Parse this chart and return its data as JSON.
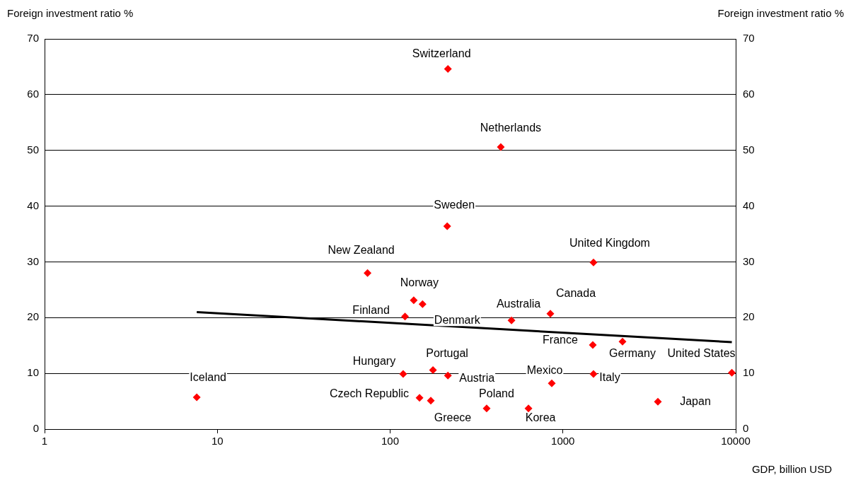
{
  "chart_data": {
    "type": "scatter",
    "ylabel": "Foreign investment ratio %",
    "y2label": "Foreign investment ratio %",
    "xlabel": "GDP, billion USD",
    "log": "x",
    "grid": "y",
    "marker": "diamond",
    "legend": false,
    "xlim": [
      1,
      10000
    ],
    "xticks": [
      1,
      10,
      100,
      1000,
      10000
    ],
    "ylim": [
      0,
      70
    ],
    "yticks": [
      0,
      10,
      20,
      30,
      40,
      50,
      60,
      70
    ],
    "y2lim": [
      0,
      70
    ],
    "y2ticks": [
      0,
      10,
      20,
      30,
      40,
      50,
      60,
      70
    ],
    "series": [
      {
        "color": "#ff0000",
        "x": [
          7.6,
          216,
          437,
          214,
          74,
          1503,
          137,
          154,
          122,
          504,
          846,
          1489,
          2213,
          9500,
          119,
          177,
          216,
          862,
          1503,
          148,
          172,
          362,
          632,
          3545
        ],
        "values": [
          5.7,
          64.6,
          50.6,
          36.4,
          28.0,
          29.9,
          23.1,
          22.4,
          20.2,
          19.5,
          20.7,
          15.1,
          15.7,
          10.1,
          9.9,
          10.6,
          9.6,
          8.2,
          9.9,
          5.6,
          5.1,
          3.7,
          3.7,
          4.9
        ]
      },
      {
        "type": "line",
        "color": "#000000",
        "marker": "none",
        "x": [
          7.6,
          9500
        ],
        "values": [
          21.0,
          15.6
        ]
      }
    ],
    "annotations": [
      {
        "text": "Iceland",
        "x": 7.6,
        "y": 5.7
      },
      {
        "text": "Switzerland",
        "x": 216,
        "y": 64.6
      },
      {
        "text": "Netherlands",
        "x": 437,
        "y": 50.6
      },
      {
        "text": "Sweden",
        "x": 214,
        "y": 36.4
      },
      {
        "text": "New Zealand",
        "x": 74,
        "y": 28.0
      },
      {
        "text": "United Kingdom",
        "x": 1503,
        "y": 29.9
      },
      {
        "text": "Norway",
        "x": 137,
        "y": 23.1
      },
      {
        "text": "Denmark",
        "x": 154,
        "y": 22.4
      },
      {
        "text": "Finland",
        "x": 122,
        "y": 20.2
      },
      {
        "text": "Australia",
        "x": 504,
        "y": 19.5
      },
      {
        "text": "Canada",
        "x": 846,
        "y": 20.7
      },
      {
        "text": "France",
        "x": 1489,
        "y": 15.1
      },
      {
        "text": "Germany",
        "x": 2213,
        "y": 15.7
      },
      {
        "text": "United States",
        "x": 9500,
        "y": 10.1
      },
      {
        "text": "Hungary",
        "x": 119,
        "y": 9.9
      },
      {
        "text": "Portugal",
        "x": 177,
        "y": 10.6
      },
      {
        "text": "Austria",
        "x": 216,
        "y": 9.6
      },
      {
        "text": "Mexico",
        "x": 862,
        "y": 8.2
      },
      {
        "text": "Italy",
        "x": 1503,
        "y": 9.9
      },
      {
        "text": "Czech Republic",
        "x": 148,
        "y": 5.6
      },
      {
        "text": "Greece",
        "x": 172,
        "y": 5.1
      },
      {
        "text": "Poland",
        "x": 362,
        "y": 3.7
      },
      {
        "text": "Korea",
        "x": 632,
        "y": 3.7
      },
      {
        "text": "Japan",
        "x": 3545,
        "y": 4.9
      }
    ]
  }
}
